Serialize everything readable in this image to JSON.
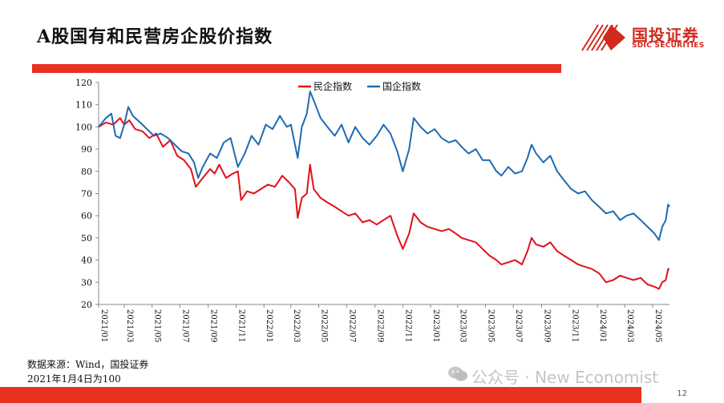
{
  "slide": {
    "title": "A股国有和民营房企股价指数",
    "source_note": "数据来源：Wind，国投证券",
    "base_note": "2021年1月4日为100",
    "page_number": "12",
    "watermark": "公众号 · New Economist"
  },
  "logo": {
    "cn": "国投证券",
    "en": "SDIC SECURITIES",
    "color": "#d22a1c"
  },
  "colors": {
    "accent_bar": "#e8311e"
  },
  "chart_data": {
    "type": "line",
    "title": "",
    "xlabel": "",
    "ylabel": "",
    "ylim": [
      20,
      120
    ],
    "yticks": [
      20,
      30,
      40,
      50,
      60,
      70,
      80,
      90,
      100,
      110,
      120
    ],
    "x_tick_labels": [
      "2021/01",
      "2021/03",
      "2021/05",
      "2021/07",
      "2021/09",
      "2021/11",
      "2022/01",
      "2022/03",
      "2022/05",
      "2022/07",
      "2022/09",
      "2022/11",
      "2023/01",
      "2023/03",
      "2023/05",
      "2023/07",
      "2023/09",
      "2023/11",
      "2024/01",
      "2024/03",
      "2024/05"
    ],
    "x_range": [
      "2021-01-04",
      "2024-06-07"
    ],
    "grid": false,
    "legend_position": "top-center",
    "series": [
      {
        "name": "民企指数",
        "color": "#e3101b",
        "points": [
          [
            "2021-01-04",
            100
          ],
          [
            "2021-01-20",
            102
          ],
          [
            "2021-02-05",
            101
          ],
          [
            "2021-02-20",
            104
          ],
          [
            "2021-03-01",
            101
          ],
          [
            "2021-03-12",
            103
          ],
          [
            "2021-03-25",
            99
          ],
          [
            "2021-04-10",
            98
          ],
          [
            "2021-04-25",
            95
          ],
          [
            "2021-05-10",
            97
          ],
          [
            "2021-05-25",
            91
          ],
          [
            "2021-06-10",
            94
          ],
          [
            "2021-06-25",
            87
          ],
          [
            "2021-07-10",
            85
          ],
          [
            "2021-07-25",
            81
          ],
          [
            "2021-08-05",
            73
          ],
          [
            "2021-08-20",
            77
          ],
          [
            "2021-09-05",
            81
          ],
          [
            "2021-09-15",
            79
          ],
          [
            "2021-09-25",
            83
          ],
          [
            "2021-10-10",
            77
          ],
          [
            "2021-10-25",
            79
          ],
          [
            "2021-11-05",
            80
          ],
          [
            "2021-11-12",
            67
          ],
          [
            "2021-11-25",
            71
          ],
          [
            "2021-12-10",
            70
          ],
          [
            "2021-12-25",
            72
          ],
          [
            "2022-01-10",
            74
          ],
          [
            "2022-01-25",
            73
          ],
          [
            "2022-02-10",
            78
          ],
          [
            "2022-02-25",
            75
          ],
          [
            "2022-03-10",
            72
          ],
          [
            "2022-03-16",
            59
          ],
          [
            "2022-03-25",
            68
          ],
          [
            "2022-04-05",
            70
          ],
          [
            "2022-04-12",
            83
          ],
          [
            "2022-04-20",
            72
          ],
          [
            "2022-05-05",
            68
          ],
          [
            "2022-05-20",
            66
          ],
          [
            "2022-06-05",
            64
          ],
          [
            "2022-06-20",
            62
          ],
          [
            "2022-07-05",
            60
          ],
          [
            "2022-07-20",
            61
          ],
          [
            "2022-08-05",
            57
          ],
          [
            "2022-08-20",
            58
          ],
          [
            "2022-09-05",
            56
          ],
          [
            "2022-09-20",
            58
          ],
          [
            "2022-10-05",
            60
          ],
          [
            "2022-10-20",
            51
          ],
          [
            "2022-11-01",
            45
          ],
          [
            "2022-11-15",
            52
          ],
          [
            "2022-11-25",
            61
          ],
          [
            "2022-12-10",
            57
          ],
          [
            "2022-12-25",
            55
          ],
          [
            "2023-01-10",
            54
          ],
          [
            "2023-01-25",
            53
          ],
          [
            "2023-02-10",
            54
          ],
          [
            "2023-02-25",
            52
          ],
          [
            "2023-03-10",
            50
          ],
          [
            "2023-03-25",
            49
          ],
          [
            "2023-04-10",
            48
          ],
          [
            "2023-04-25",
            45
          ],
          [
            "2023-05-10",
            42
          ],
          [
            "2023-05-25",
            40
          ],
          [
            "2023-06-05",
            38
          ],
          [
            "2023-06-20",
            39
          ],
          [
            "2023-07-05",
            40
          ],
          [
            "2023-07-20",
            38
          ],
          [
            "2023-08-01",
            44
          ],
          [
            "2023-08-10",
            50
          ],
          [
            "2023-08-20",
            47
          ],
          [
            "2023-09-05",
            46
          ],
          [
            "2023-09-20",
            48
          ],
          [
            "2023-10-05",
            44
          ],
          [
            "2023-10-20",
            42
          ],
          [
            "2023-11-05",
            40
          ],
          [
            "2023-11-20",
            38
          ],
          [
            "2023-12-05",
            37
          ],
          [
            "2023-12-20",
            36
          ],
          [
            "2024-01-05",
            34
          ],
          [
            "2024-01-20",
            30
          ],
          [
            "2024-02-05",
            31
          ],
          [
            "2024-02-20",
            33
          ],
          [
            "2024-03-05",
            32
          ],
          [
            "2024-03-20",
            31
          ],
          [
            "2024-04-05",
            32
          ],
          [
            "2024-04-20",
            29
          ],
          [
            "2024-05-05",
            28
          ],
          [
            "2024-05-15",
            27
          ],
          [
            "2024-05-22",
            30
          ],
          [
            "2024-05-30",
            31
          ],
          [
            "2024-06-04",
            36
          ],
          [
            "2024-06-07",
            36
          ]
        ]
      },
      {
        "name": "国企指数",
        "color": "#1d6bb4",
        "points": [
          [
            "2021-01-04",
            100
          ],
          [
            "2021-01-20",
            104
          ],
          [
            "2021-02-01",
            106
          ],
          [
            "2021-02-10",
            96
          ],
          [
            "2021-02-20",
            95
          ],
          [
            "2021-03-01",
            101
          ],
          [
            "2021-03-10",
            109
          ],
          [
            "2021-03-20",
            105
          ],
          [
            "2021-04-05",
            102
          ],
          [
            "2021-04-20",
            99
          ],
          [
            "2021-05-05",
            96
          ],
          [
            "2021-05-20",
            97
          ],
          [
            "2021-06-05",
            95
          ],
          [
            "2021-06-20",
            92
          ],
          [
            "2021-07-05",
            89
          ],
          [
            "2021-07-20",
            88
          ],
          [
            "2021-08-01",
            84
          ],
          [
            "2021-08-10",
            77
          ],
          [
            "2021-08-20",
            82
          ],
          [
            "2021-09-05",
            88
          ],
          [
            "2021-09-20",
            86
          ],
          [
            "2021-10-05",
            93
          ],
          [
            "2021-10-20",
            95
          ],
          [
            "2021-11-05",
            82
          ],
          [
            "2021-11-20",
            88
          ],
          [
            "2021-12-05",
            96
          ],
          [
            "2021-12-20",
            92
          ],
          [
            "2022-01-05",
            101
          ],
          [
            "2022-01-20",
            99
          ],
          [
            "2022-02-05",
            105
          ],
          [
            "2022-02-20",
            100
          ],
          [
            "2022-03-01",
            101
          ],
          [
            "2022-03-16",
            86
          ],
          [
            "2022-03-25",
            100
          ],
          [
            "2022-04-05",
            106
          ],
          [
            "2022-04-12",
            116
          ],
          [
            "2022-04-20",
            112
          ],
          [
            "2022-05-05",
            104
          ],
          [
            "2022-05-20",
            100
          ],
          [
            "2022-06-05",
            96
          ],
          [
            "2022-06-20",
            101
          ],
          [
            "2022-07-05",
            93
          ],
          [
            "2022-07-20",
            100
          ],
          [
            "2022-08-05",
            95
          ],
          [
            "2022-08-20",
            92
          ],
          [
            "2022-09-05",
            96
          ],
          [
            "2022-09-20",
            101
          ],
          [
            "2022-10-05",
            97
          ],
          [
            "2022-10-20",
            89
          ],
          [
            "2022-11-01",
            80
          ],
          [
            "2022-11-15",
            90
          ],
          [
            "2022-11-25",
            104
          ],
          [
            "2022-12-10",
            100
          ],
          [
            "2022-12-25",
            97
          ],
          [
            "2023-01-10",
            99
          ],
          [
            "2023-01-25",
            95
          ],
          [
            "2023-02-10",
            93
          ],
          [
            "2023-02-25",
            94
          ],
          [
            "2023-03-10",
            91
          ],
          [
            "2023-03-25",
            88
          ],
          [
            "2023-04-10",
            90
          ],
          [
            "2023-04-25",
            85
          ],
          [
            "2023-05-10",
            85
          ],
          [
            "2023-05-25",
            80
          ],
          [
            "2023-06-05",
            78
          ],
          [
            "2023-06-20",
            82
          ],
          [
            "2023-07-05",
            79
          ],
          [
            "2023-07-20",
            80
          ],
          [
            "2023-08-01",
            86
          ],
          [
            "2023-08-10",
            92
          ],
          [
            "2023-08-20",
            88
          ],
          [
            "2023-09-05",
            84
          ],
          [
            "2023-09-20",
            87
          ],
          [
            "2023-10-05",
            80
          ],
          [
            "2023-10-20",
            76
          ],
          [
            "2023-11-05",
            72
          ],
          [
            "2023-11-20",
            70
          ],
          [
            "2023-12-05",
            71
          ],
          [
            "2023-12-20",
            67
          ],
          [
            "2024-01-05",
            64
          ],
          [
            "2024-01-20",
            61
          ],
          [
            "2024-02-05",
            62
          ],
          [
            "2024-02-20",
            58
          ],
          [
            "2024-03-05",
            60
          ],
          [
            "2024-03-20",
            61
          ],
          [
            "2024-04-05",
            58
          ],
          [
            "2024-04-20",
            55
          ],
          [
            "2024-05-05",
            52
          ],
          [
            "2024-05-15",
            49
          ],
          [
            "2024-05-22",
            55
          ],
          [
            "2024-05-30",
            58
          ],
          [
            "2024-06-04",
            65
          ],
          [
            "2024-06-07",
            64
          ]
        ]
      }
    ]
  }
}
